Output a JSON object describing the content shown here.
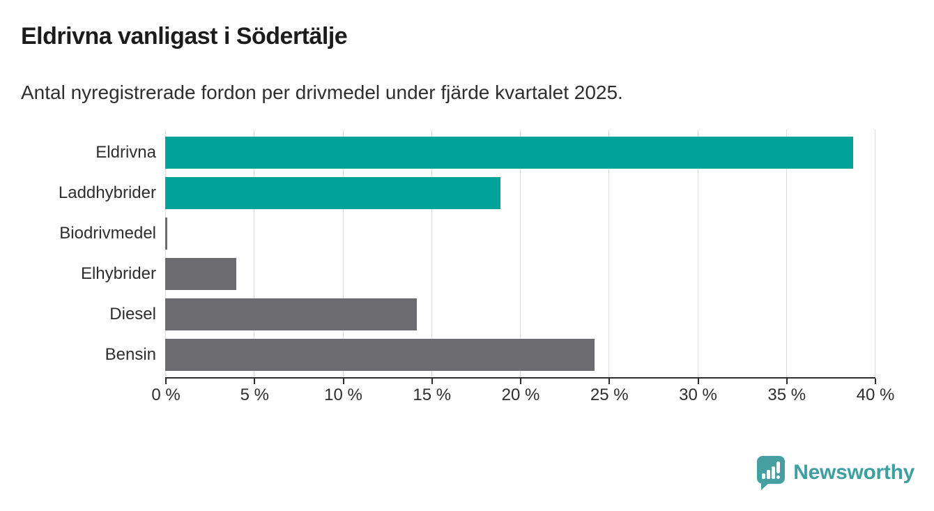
{
  "title": "Eldrivna vanligast i Södertälje",
  "subtitle": "Antal nyregistrerade fordon per drivmedel under fjärde kvartalet 2025.",
  "chart_data": {
    "type": "bar",
    "orientation": "horizontal",
    "title": "Eldrivna vanligast i Södertälje",
    "subtitle": "Antal nyregistrerade fordon per drivmedel under fjärde kvartalet 2025.",
    "categories": [
      "Eldrivna",
      "Laddhybrider",
      "Biodrivmedel",
      "Elhybrider",
      "Diesel",
      "Bensin"
    ],
    "values": [
      38.8,
      18.9,
      0.1,
      4.0,
      14.2,
      24.2
    ],
    "unit": "%",
    "bar_colors": [
      "#00a29a",
      "#00a29a",
      "#6b6b70",
      "#6b6b70",
      "#6b6b70",
      "#6b6b70"
    ],
    "x_ticks": [
      "0 %",
      "5 %",
      "10 %",
      "15 %",
      "20 %",
      "25 %",
      "30 %",
      "35 %",
      "40 %"
    ],
    "x_tick_values": [
      0,
      5,
      10,
      15,
      20,
      25,
      30,
      35,
      40
    ],
    "xlim": [
      0,
      40
    ],
    "xlabel": "",
    "ylabel": "",
    "grid": true,
    "legend": "none"
  },
  "colors": {
    "accent_teal": "#00a29a",
    "neutral_gray": "#6b6b70",
    "gridline": "#dcdcdc",
    "axis": "#2d2d2d",
    "brand_teal": "#3d9fa0"
  },
  "footer": {
    "brand": "Newsworthy"
  }
}
